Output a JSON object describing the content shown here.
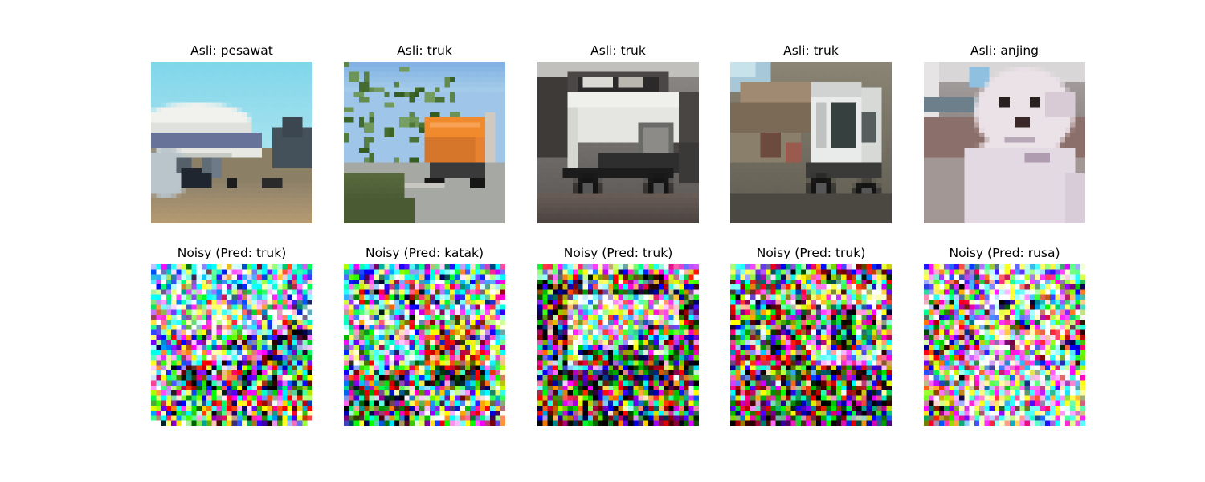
{
  "original_row": [
    {
      "title": "Asli: pesawat",
      "content": "airplane-photo"
    },
    {
      "title": "Asli: truk",
      "content": "truck-photo-orange"
    },
    {
      "title": "Asli: truk",
      "content": "truck-photo-white"
    },
    {
      "title": "Asli: truk",
      "content": "truck-photo-dump"
    },
    {
      "title": "Asli: anjing",
      "content": "dog-photo-white"
    }
  ],
  "noisy_row": [
    {
      "title": "Noisy (Pred: truk)",
      "content": "noisy-airplane-photo"
    },
    {
      "title": "Noisy (Pred: katak)",
      "content": "noisy-truck-photo-orange"
    },
    {
      "title": "Noisy (Pred: truk)",
      "content": "noisy-truck-photo-white"
    },
    {
      "title": "Noisy (Pred: truk)",
      "content": "noisy-truck-photo-dump"
    },
    {
      "title": "Noisy (Pred: rusa)",
      "content": "noisy-dog-photo-white"
    }
  ]
}
